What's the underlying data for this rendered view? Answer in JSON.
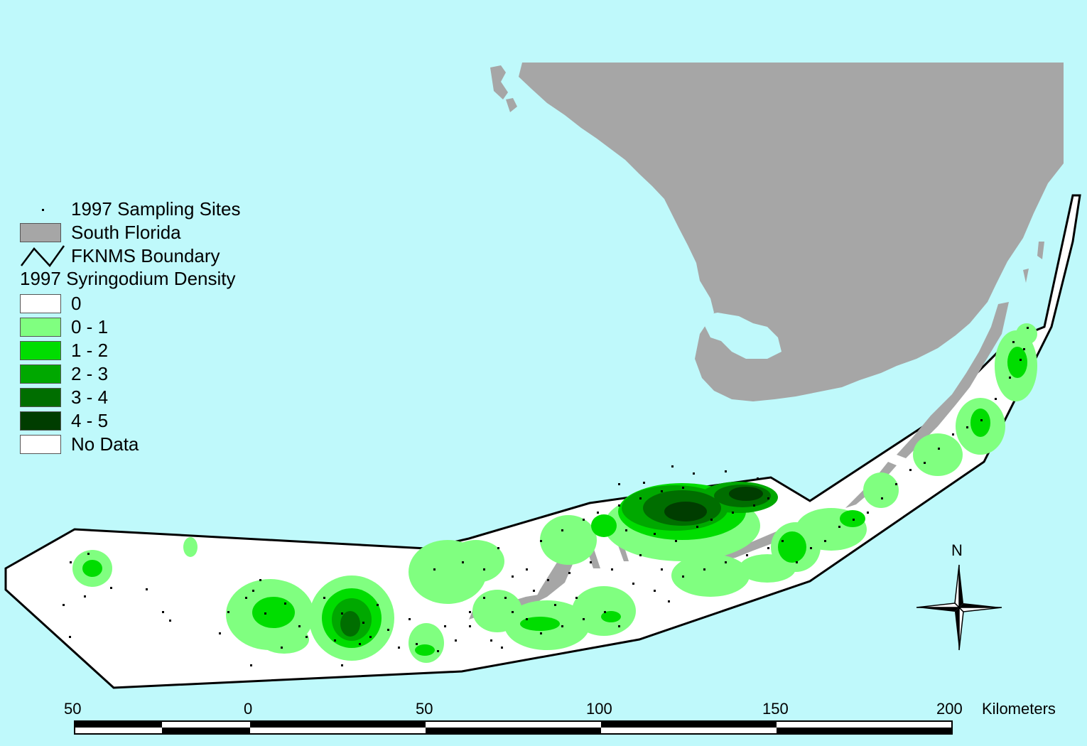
{
  "legend": {
    "sites": "1997 Sampling Sites",
    "florida": "South Florida",
    "boundary": "FKNMS Boundary",
    "title": "1997 Syringodium Density",
    "classes": [
      {
        "label": "0",
        "color": "#ffffff"
      },
      {
        "label": "0 - 1",
        "color": "#80ff80"
      },
      {
        "label": "1 - 2",
        "color": "#00dd00"
      },
      {
        "label": "2 - 3",
        "color": "#00a800"
      },
      {
        "label": "3 - 4",
        "color": "#006e00"
      },
      {
        "label": "4 - 5",
        "color": "#003d00"
      },
      {
        "label": "No Data",
        "color": "#ffffff"
      }
    ]
  },
  "colors": {
    "water": "#bff9fb",
    "land": "#a6a6a6",
    "boundary_fill": "#ffffff",
    "boundary_line": "#000000"
  },
  "north": "N",
  "scale": {
    "ticks": [
      "50",
      "0",
      "50",
      "100",
      "150",
      "200"
    ],
    "unit": "Kilometers"
  }
}
